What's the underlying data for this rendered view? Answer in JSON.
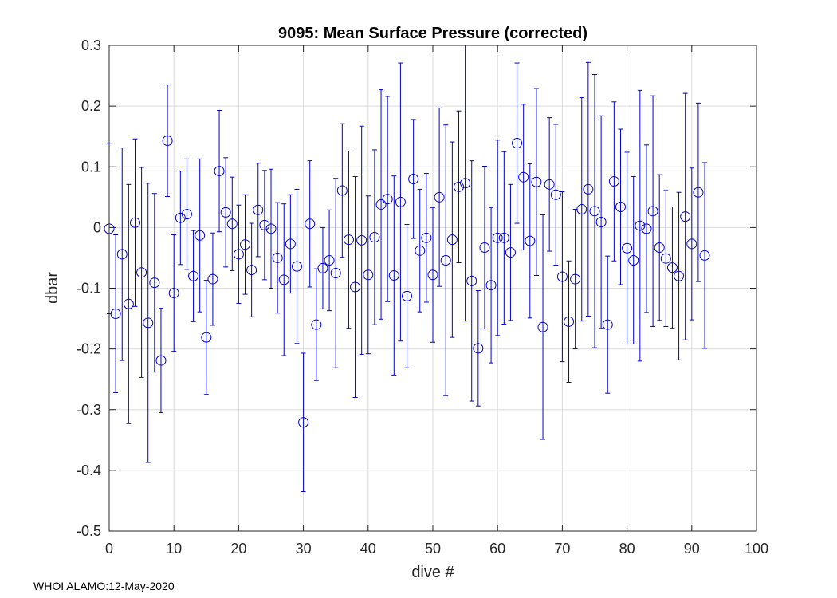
{
  "footer": {
    "text": "WHOI ALAMO:12-May-2020"
  },
  "colors": {
    "series": "#0000cc",
    "axis": "#262626",
    "grid": "#dcdcdc"
  },
  "chart_data": {
    "type": "scatter",
    "subtype": "errorbar",
    "title": "9095: Mean Surface Pressure (corrected)",
    "xlabel": "dive #",
    "ylabel": "dbar",
    "xlim": [
      0,
      100
    ],
    "ylim": [
      -0.5,
      0.3
    ],
    "xticks": [
      0,
      10,
      20,
      30,
      40,
      50,
      60,
      70,
      80,
      90,
      100
    ],
    "yticks": [
      -0.5,
      -0.4,
      -0.3,
      -0.2,
      -0.1,
      0,
      0.1,
      0.2,
      0.3
    ],
    "ytick_labels": [
      "-0.5",
      "-0.4",
      "-0.3",
      "-0.2",
      "-0.1",
      "0",
      "0.1",
      "0.2",
      "0.3"
    ],
    "grid": true,
    "marker": "open-circle",
    "series": [
      {
        "name": "mean surface pressure",
        "x": [
          0,
          1,
          2,
          3,
          4,
          5,
          6,
          7,
          8,
          9,
          10,
          11,
          12,
          13,
          14,
          15,
          16,
          17,
          18,
          19,
          20,
          21,
          22,
          23,
          24,
          25,
          26,
          27,
          28,
          29,
          30,
          31,
          32,
          33,
          34,
          35,
          36,
          37,
          38,
          39,
          40,
          41,
          42,
          43,
          44,
          45,
          46,
          47,
          48,
          49,
          50,
          51,
          52,
          53,
          54,
          55,
          56,
          57,
          58,
          59,
          60,
          61,
          62,
          63,
          64,
          65,
          66,
          67,
          68,
          69,
          70,
          71,
          72,
          73,
          74,
          75,
          76,
          77,
          78,
          79,
          80,
          81,
          82,
          83,
          84,
          85,
          86,
          87,
          88,
          89,
          90,
          91,
          92
        ],
        "y": [
          -0.002,
          -0.142,
          -0.044,
          -0.126,
          0.008,
          -0.074,
          -0.157,
          -0.091,
          -0.219,
          0.143,
          -0.108,
          0.016,
          0.022,
          -0.08,
          -0.013,
          -0.181,
          -0.085,
          0.093,
          0.025,
          0.006,
          -0.044,
          -0.028,
          -0.07,
          0.029,
          0.004,
          -0.002,
          -0.05,
          -0.086,
          -0.027,
          -0.064,
          -0.321,
          0.006,
          -0.16,
          -0.067,
          -0.054,
          -0.075,
          0.061,
          -0.02,
          -0.098,
          -0.021,
          -0.078,
          -0.016,
          0.038,
          0.047,
          -0.079,
          0.042,
          -0.113,
          0.08,
          -0.038,
          -0.017,
          -0.078,
          0.05,
          -0.054,
          -0.02,
          0.067,
          0.073,
          -0.088,
          -0.199,
          -0.033,
          -0.095,
          -0.017,
          -0.017,
          -0.041,
          0.139,
          0.083,
          -0.022,
          0.075,
          -0.164,
          0.071,
          0.054,
          -0.081,
          -0.155,
          -0.085,
          0.03,
          0.063,
          0.027,
          0.009,
          -0.16,
          0.076,
          0.034,
          -0.034,
          -0.054,
          0.003,
          -0.002,
          0.027,
          -0.033,
          -0.051,
          -0.066,
          -0.08,
          0.018,
          -0.027,
          0.058,
          -0.046
        ],
        "err": [
          0.14,
          0.13,
          0.175,
          0.197,
          0.138,
          0.173,
          0.23,
          0.147,
          0.086,
          0.092,
          0.096,
          0.077,
          0.091,
          0.075,
          0.126,
          0.094,
          0.076,
          0.1,
          0.09,
          0.077,
          0.081,
          0.082,
          0.077,
          0.077,
          0.09,
          0.098,
          0.091,
          0.125,
          0.081,
          0.127,
          0.114,
          0.104,
          0.092,
          0.067,
          0.083,
          0.156,
          0.11,
          0.146,
          0.182,
          0.188,
          0.13,
          0.144,
          0.189,
          0.169,
          0.164,
          0.229,
          0.118,
          0.098,
          0.101,
          0.106,
          0.111,
          0.147,
          0.223,
          0.161,
          0.125,
          0.227,
          0.198,
          0.095,
          0.134,
          0.128,
          0.161,
          0.142,
          0.112,
          0.132,
          0.12,
          0.127,
          0.154,
          0.185,
          0.11,
          0.116,
          0.14,
          0.1,
          0.115,
          0.184,
          0.209,
          0.225,
          0.175,
          0.113,
          0.131,
          0.128,
          0.158,
          0.138,
          0.223,
          0.138,
          0.19,
          0.12,
          0.112,
          0.1,
          0.138,
          0.203,
          0.125,
          0.147,
          0.153
        ]
      }
    ]
  }
}
